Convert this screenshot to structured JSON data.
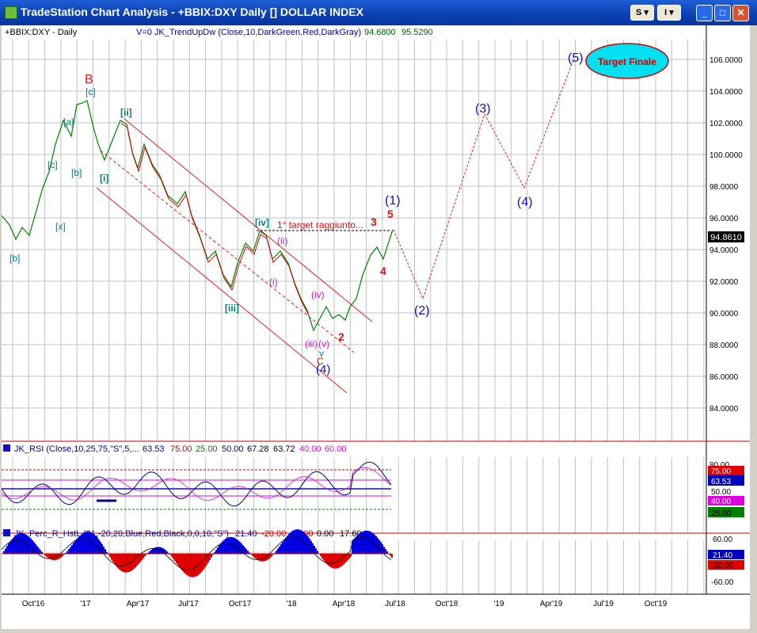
{
  "window": {
    "title": "TradeStation Chart Analysis - +BBIX:DXY Daily [] DOLLAR INDEX",
    "btn_s": "S",
    "btn_i": "I",
    "btn_minimize": "_",
    "btn_maximize": "□",
    "btn_close": "✕"
  },
  "price_panel": {
    "symbol_label": "+BBIX:DXY - Daily",
    "indicator_label": "V=0  JK_TrendUpDw (Close,10,DarkGreen,Red,DarkGray)",
    "indicator_val1": "94.6800",
    "indicator_val2": "95.5290",
    "last_price": "94.8610",
    "y_ticks": [
      "106.0000",
      "104.0000",
      "102.0000",
      "100.0000",
      "98.0000",
      "96.0000",
      "94.0000",
      "92.0000",
      "90.0000",
      "88.0000",
      "86.0000",
      "84.0000"
    ],
    "target_text": "Target Finale",
    "target_note": "1° target raggiunto...",
    "wave_labels": {
      "B": "B",
      "c_bracket": "[c]",
      "a_bracket": "[a]",
      "c_bracket2": "[c]",
      "b_bracket": "[b]",
      "x_bracket": "[x]",
      "b_bracket2": "[b]",
      "ii_bracket": "[ii]",
      "i_bracket": "[i]",
      "iii_bracket": "[iii]",
      "iv_bracket": "[iv]",
      "ii_paren": "(ii)",
      "i_paren": "(i)",
      "iv_paren": "(iv)",
      "iii_paren": "(iii)",
      "v_paren": "(v)",
      "v_small": "v",
      "C": "C",
      "w4_base": "(4)",
      "w2_small": "2",
      "w3_small": "3",
      "w4_small": "4",
      "w5_small": "5",
      "w1": "(1)",
      "w2": "(2)",
      "w3": "(3)",
      "w4": "(4)",
      "w5": "(5)"
    }
  },
  "rsi_panel": {
    "label": "JK_RSI (Close,10,25,75,\"S\",5,...",
    "v1": "63.53",
    "v2": "75.00",
    "v3": "25.00",
    "v4": "50.00",
    "v5": "67.28",
    "v6": "63.72",
    "v7": "40.00",
    "v8": "60.00",
    "axis_top": "80.00",
    "box_75": "75.00",
    "box_cur": "63.53",
    "box_50": "50.00",
    "box_40": "40.00",
    "box_25": "25.00"
  },
  "perc_panel": {
    "label": "JK_Perc_R_HstL (21,-20,20,Blue,Red,Black,0,0,10,\"S\")",
    "v1": "21.40",
    "v2": "-20.00",
    "v3": "20.00",
    "v4": "0.00",
    "v5": "17.60",
    "axis_60": "60.00",
    "box_cur": "21.40",
    "box_neg20": "-20.00",
    "axis_neg60": "-60.00"
  },
  "x_axis": [
    "Oct'16",
    "'17",
    "Apr'17",
    "Jul'17",
    "Oct'17",
    "'18",
    "Apr'18",
    "Jul'18",
    "Oct'18",
    "'19",
    "Apr'19",
    "Jul'19",
    "Oct'19"
  ],
  "colors": {
    "wave_blue": "#1010c0",
    "wave_red": "#e01010",
    "wave_magenta": "#d010d0",
    "wave_teal": "#008080",
    "channel_red": "#e02020",
    "target_fill": "#00e0f0"
  }
}
